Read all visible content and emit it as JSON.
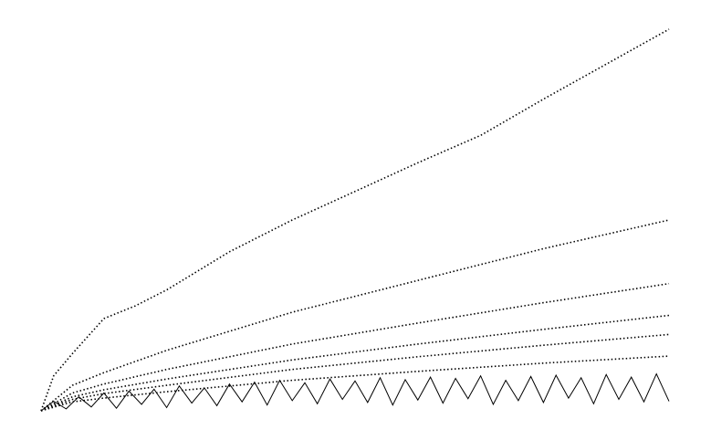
{
  "chart_data": {
    "type": "line",
    "xlim": [
      0,
      100
    ],
    "ylim": [
      0,
      60
    ],
    "series": [
      {
        "color": "#000000",
        "x": [
          0,
          2,
          5,
          10,
          15,
          20,
          30,
          40,
          50,
          60,
          70,
          80,
          90,
          100
        ],
        "values": [
          0,
          5.5,
          9,
          14.5,
          16.5,
          19,
          25,
          30,
          34.5,
          39,
          43.3,
          49,
          54.5,
          60
        ]
      },
      {
        "color": "#000000",
        "x": [
          0,
          5,
          10,
          20,
          40,
          60,
          80,
          100
        ],
        "values": [
          0,
          4,
          6,
          9.5,
          15.5,
          20.5,
          25.5,
          30
        ]
      },
      {
        "color": "#000000",
        "x": [
          0,
          5,
          10,
          20,
          40,
          60,
          80,
          100
        ],
        "values": [
          0,
          2.8,
          4.2,
          6.5,
          10.5,
          13.8,
          17,
          20
        ]
      },
      {
        "color": "#000000",
        "x": [
          0,
          5,
          10,
          20,
          40,
          60,
          80,
          100
        ],
        "values": [
          0,
          2.2,
          3.3,
          5,
          8,
          10.5,
          12.8,
          15
        ]
      },
      {
        "color": "#000000",
        "x": [
          0,
          5,
          10,
          20,
          40,
          60,
          80,
          100
        ],
        "values": [
          0,
          1.8,
          2.7,
          4,
          6.5,
          8.5,
          10.3,
          12
        ]
      },
      {
        "color": "#000000",
        "x": [
          0,
          5,
          10,
          20,
          40,
          60,
          80,
          100
        ],
        "values": [
          0,
          1.4,
          2,
          3,
          4.8,
          6.2,
          7.5,
          8.6
        ]
      },
      {
        "color": "#000000",
        "x": [
          0,
          2,
          4,
          6,
          8,
          10,
          12,
          14,
          16,
          18,
          20,
          22,
          24,
          26,
          28,
          30,
          32,
          34,
          36,
          38,
          40,
          42,
          44,
          46,
          48,
          50,
          52,
          54,
          56,
          58,
          60,
          62,
          64,
          66,
          68,
          70,
          72,
          74,
          76,
          78,
          80,
          82,
          84,
          86,
          88,
          90,
          92,
          94,
          96,
          98,
          100
        ],
        "values": [
          0,
          1.5,
          0.3,
          2.2,
          0.6,
          2.8,
          0.4,
          3.1,
          1,
          3.4,
          0.5,
          3.9,
          1.2,
          3.6,
          0.8,
          4.2,
          1.4,
          4.5,
          0.9,
          4.8,
          1.6,
          4.4,
          1.1,
          5,
          1.8,
          4.7,
          1.3,
          5.2,
          0.9,
          4.9,
          1.7,
          5.3,
          1.2,
          5.1,
          1.9,
          5.5,
          1,
          4.8,
          1.6,
          5.4,
          1.3,
          5.6,
          2,
          5.2,
          1.1,
          5.7,
          1.8,
          5.3,
          1.4,
          5.8,
          1.5
        ]
      }
    ]
  }
}
